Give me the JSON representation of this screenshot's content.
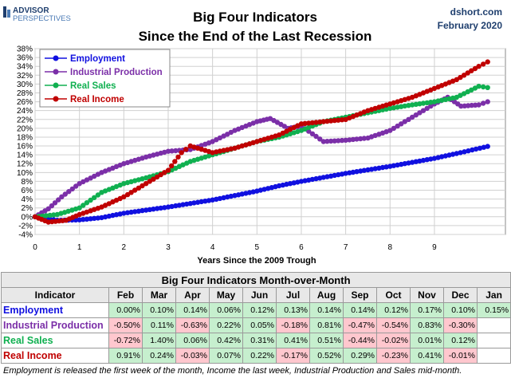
{
  "logo": {
    "line1": "ADVISOR",
    "line2": "PERSPECTIVES"
  },
  "source": {
    "site": "dshort.com",
    "date": "February 2020"
  },
  "colors": {
    "employment": "#1010e0",
    "industrial": "#7b2fa8",
    "sales": "#10b050",
    "income": "#c00000"
  },
  "chart_data": {
    "type": "line",
    "title": "Big Four Indicators",
    "subtitle": "Since the End of the Last Recession",
    "xlabel": "Years Since the 2009 Trough",
    "xlim": [
      0,
      10.6
    ],
    "ylim": [
      -4,
      38
    ],
    "x_ticks": [
      0,
      1,
      2,
      3,
      4,
      5,
      6,
      7,
      8,
      9
    ],
    "y_ticks": [
      -4,
      -2,
      0,
      2,
      4,
      6,
      8,
      10,
      12,
      14,
      16,
      18,
      20,
      22,
      24,
      26,
      28,
      30,
      32,
      34,
      36,
      38
    ],
    "y_tick_format": "percent",
    "legend": "top-left",
    "grid": true,
    "series": [
      {
        "name": "Employment",
        "key": "employment",
        "x": [
          0,
          0.5,
          1,
          1.5,
          2,
          2.5,
          3,
          3.5,
          4,
          4.5,
          5,
          5.5,
          6,
          6.5,
          7,
          7.5,
          8,
          8.5,
          9,
          9.5,
          10.2
        ],
        "y": [
          0,
          -0.8,
          -0.7,
          -0.2,
          0.8,
          1.5,
          2.2,
          3.0,
          3.8,
          4.8,
          5.8,
          7.0,
          8.0,
          8.9,
          9.8,
          10.6,
          11.4,
          12.3,
          13.2,
          14.3,
          15.9
        ]
      },
      {
        "name": "Industrial Production",
        "key": "industrial",
        "x": [
          0,
          0.3,
          0.6,
          1,
          1.5,
          2,
          2.5,
          3,
          3.5,
          4,
          4.5,
          5,
          5.3,
          5.7,
          6,
          6.5,
          7,
          7.5,
          8,
          8.5,
          9,
          9.3,
          9.6,
          10,
          10.2
        ],
        "y": [
          0,
          1.8,
          4.5,
          7.5,
          10,
          12,
          13.5,
          14.8,
          15.2,
          17,
          19.5,
          21.5,
          22.2,
          20,
          20.5,
          17,
          17.3,
          17.8,
          19.5,
          22.5,
          25.5,
          27,
          25,
          25.3,
          26
        ]
      },
      {
        "name": "Real Sales",
        "key": "sales",
        "x": [
          0,
          0.5,
          1,
          1.5,
          2,
          2.5,
          3,
          3.5,
          4,
          4.5,
          5,
          5.5,
          6,
          6.5,
          7,
          7.5,
          8,
          8.5,
          9,
          9.5,
          10,
          10.2
        ],
        "y": [
          0,
          0.5,
          2,
          5.5,
          7.5,
          8.8,
          10.2,
          12.5,
          14,
          15.5,
          17,
          18,
          19.5,
          21.5,
          22.5,
          23.5,
          24.5,
          25.3,
          26,
          27,
          29.5,
          29.2
        ]
      },
      {
        "name": "Real Income",
        "key": "income",
        "x": [
          0,
          0.3,
          0.7,
          1,
          1.5,
          2,
          2.5,
          3,
          3.3,
          3.5,
          4,
          4.5,
          5,
          5.5,
          6,
          6.5,
          7,
          7.5,
          8,
          8.5,
          9,
          9.5,
          10,
          10.2
        ],
        "y": [
          0,
          -1.2,
          -0.8,
          0.5,
          2.2,
          4.5,
          7.5,
          10.5,
          14.5,
          16,
          14.5,
          15.5,
          17,
          18.5,
          21,
          21.5,
          22,
          24,
          25.5,
          27,
          29,
          31,
          34,
          35
        ]
      }
    ]
  },
  "table": {
    "title": "Big Four Indicators Month-over-Month",
    "header_indicator": "Indicator",
    "months": [
      "Feb",
      "Mar",
      "Apr",
      "May",
      "Jun",
      "Jul",
      "Aug",
      "Sep",
      "Oct",
      "Nov",
      "Dec",
      "Jan"
    ],
    "rows": [
      {
        "name": "Employment",
        "key": "employment",
        "values": [
          "0.00%",
          "0.10%",
          "0.14%",
          "0.06%",
          "0.12%",
          "0.13%",
          "0.14%",
          "0.14%",
          "0.12%",
          "0.17%",
          "0.10%",
          "0.15%"
        ]
      },
      {
        "name": "Industrial Production",
        "key": "industrial",
        "values": [
          "-0.50%",
          "0.11%",
          "-0.63%",
          "0.22%",
          "0.05%",
          "-0.18%",
          "0.81%",
          "-0.47%",
          "-0.54%",
          "0.83%",
          "-0.30%",
          ""
        ]
      },
      {
        "name": "Real Sales",
        "key": "sales",
        "values": [
          "-0.72%",
          "1.40%",
          "0.06%",
          "0.42%",
          "0.31%",
          "0.41%",
          "0.51%",
          "-0.44%",
          "-0.02%",
          "0.01%",
          "0.12%",
          ""
        ]
      },
      {
        "name": "Real Income",
        "key": "income",
        "values": [
          "0.91%",
          "0.24%",
          "-0.03%",
          "0.07%",
          "0.22%",
          "-0.17%",
          "0.52%",
          "0.29%",
          "-0.23%",
          "0.41%",
          "-0.01%",
          ""
        ]
      }
    ]
  },
  "footnote": "Employment is released the first week of the month, Income the last week, Industrial Production and Sales mid-month."
}
